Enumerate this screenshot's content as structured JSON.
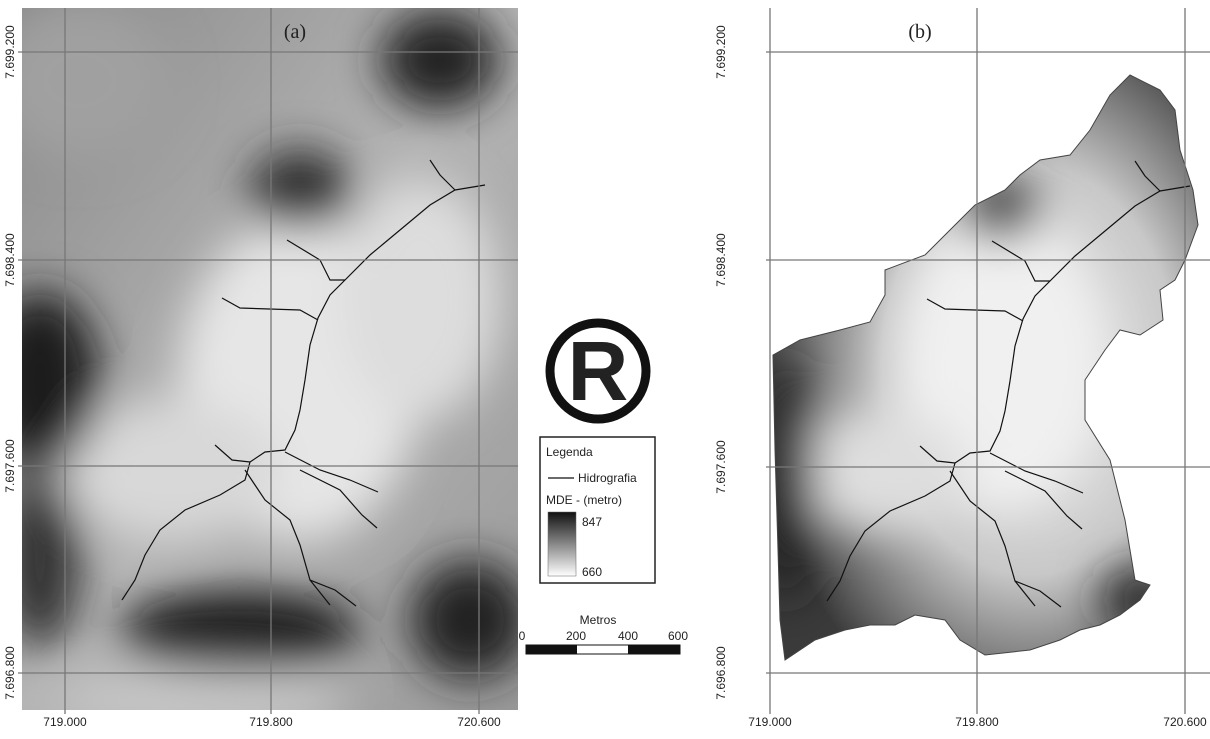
{
  "panels": [
    {
      "label": "(a)",
      "xticks": [
        "719.000",
        "719.800",
        "720.600"
      ],
      "yticks": [
        "7.699.200",
        "7.698.400",
        "7.697.600",
        "7.696.800"
      ]
    },
    {
      "label": "(b)",
      "xticks": [
        "719.000",
        "719.800",
        "720.600"
      ],
      "yticks": [
        "7.699.200",
        "7.698.400",
        "7.697.600",
        "7.696.800"
      ]
    }
  ],
  "symbol": "R",
  "legend": {
    "title": "Legenda",
    "line_item": "Hidrografia",
    "raster_title": "MDE - (metro)",
    "max": 847,
    "min": 660
  },
  "scale_bar": {
    "unit": "Metros",
    "ticks": [
      0,
      200,
      400,
      600
    ]
  }
}
